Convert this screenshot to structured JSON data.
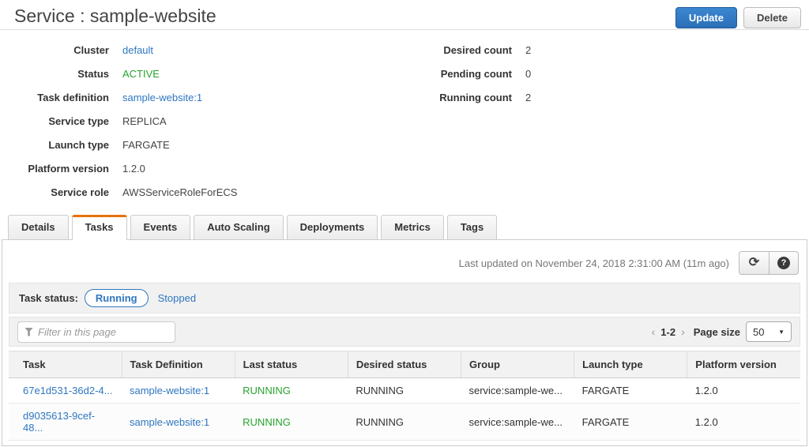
{
  "header": {
    "title": "Service : sample-website",
    "update_label": "Update",
    "delete_label": "Delete"
  },
  "details": {
    "left": [
      {
        "label": "Cluster",
        "value": "default"
      },
      {
        "label": "Status",
        "value": "ACTIVE"
      },
      {
        "label": "Task definition",
        "value": "sample-website:1"
      },
      {
        "label": "Service type",
        "value": "REPLICA"
      },
      {
        "label": "Launch type",
        "value": "FARGATE"
      },
      {
        "label": "Platform version",
        "value": "1.2.0"
      },
      {
        "label": "Service role",
        "value": "AWSServiceRoleForECS"
      }
    ],
    "right": [
      {
        "label": "Desired count",
        "value": "2"
      },
      {
        "label": "Pending count",
        "value": "0"
      },
      {
        "label": "Running count",
        "value": "2"
      }
    ]
  },
  "tabs": [
    {
      "label": "Details"
    },
    {
      "label": "Tasks"
    },
    {
      "label": "Events"
    },
    {
      "label": "Auto Scaling"
    },
    {
      "label": "Deployments"
    },
    {
      "label": "Metrics"
    },
    {
      "label": "Tags"
    }
  ],
  "panel": {
    "last_updated": "Last updated on November 24, 2018 2:31:00 AM (11m ago)",
    "task_status_label": "Task status:",
    "running_label": "Running",
    "stopped_label": "Stopped",
    "filter_placeholder": "Filter in this page",
    "pagination": {
      "prev": "‹",
      "range": "1-2",
      "next": "›",
      "page_size_label": "Page size",
      "page_size_value": "50"
    }
  },
  "icons": {
    "refresh": "⟳",
    "help": "?",
    "dropdown_caret": "▼",
    "filter": "funnel-icon"
  },
  "table": {
    "columns": [
      "Task",
      "Task Definition",
      "Last status",
      "Desired status",
      "Group",
      "Launch type",
      "Platform version"
    ],
    "rows": [
      [
        "67e1d531-36d2-4...",
        "sample-website:1",
        "RUNNING",
        "RUNNING",
        "service:sample-we...",
        "FARGATE",
        "1.2.0"
      ],
      [
        "d9035613-9cef-48...",
        "sample-website:1",
        "RUNNING",
        "RUNNING",
        "service:sample-we...",
        "FARGATE",
        "1.2.0"
      ]
    ]
  },
  "colors": {
    "link_blue": "#2e77c0",
    "status_green": "#28a32e",
    "tab_active_orange": "#e8710d",
    "primary_button_blue": "#2a6fb8"
  }
}
